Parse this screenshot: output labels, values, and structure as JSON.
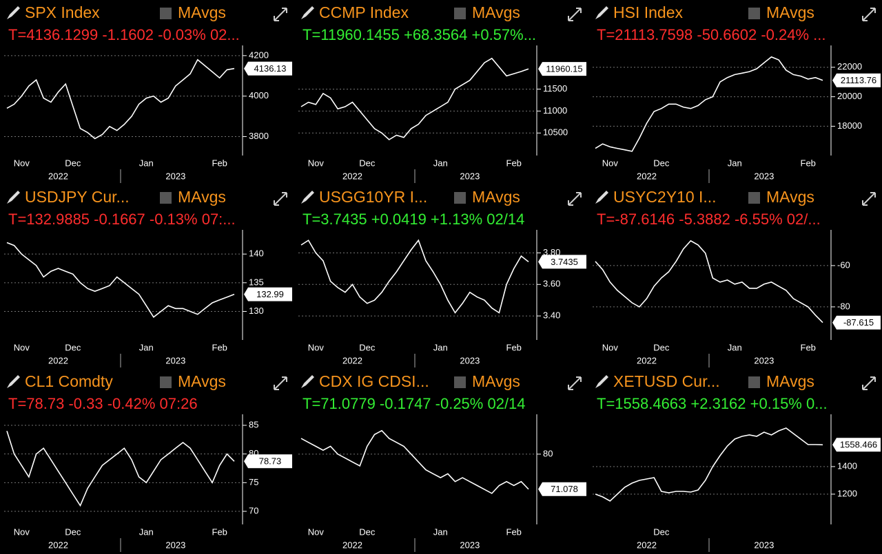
{
  "chart_data": [
    {
      "type": "line",
      "title": "SPX Index",
      "legend": "MAvgs",
      "ticker": "T=4136.1299 -1.1602 -0.03% 02...",
      "ticker_color": "#ff2d2d",
      "color": "#ffffff",
      "grid": true,
      "categories": [
        null,
        null,
        "Nov",
        null,
        null,
        null,
        null,
        null,
        null,
        "Dec",
        null,
        null,
        null,
        null,
        null,
        null,
        null,
        null,
        null,
        "Jan",
        null,
        null,
        null,
        null,
        null,
        null,
        null,
        null,
        null,
        "Feb",
        null,
        null
      ],
      "years": [
        null,
        null,
        null,
        null,
        null,
        null,
        null,
        "2022",
        null,
        null,
        null,
        null,
        null,
        null,
        null,
        null,
        null,
        null,
        null,
        null,
        null,
        null,
        null,
        "2023",
        null,
        null,
        null,
        null,
        null,
        null,
        null,
        null
      ],
      "values": [
        3940,
        3960,
        4000,
        4050,
        4080,
        3990,
        3970,
        4020,
        4060,
        3950,
        3840,
        3820,
        3790,
        3810,
        3850,
        3830,
        3860,
        3900,
        3960,
        3990,
        4000,
        3970,
        3990,
        4050,
        4080,
        4110,
        4180,
        4150,
        4120,
        4090,
        4130,
        4136.1299
      ],
      "last_label": "4136.13",
      "ylim": [
        3720,
        4230
      ],
      "yticks": [
        3800,
        4000,
        4200
      ]
    },
    {
      "type": "line",
      "title": "CCMP Index",
      "legend": "MAvgs",
      "ticker": "T=11960.1455 +68.3564 +0.57%...",
      "ticker_color": "#33ee33",
      "color": "#ffffff",
      "grid": true,
      "categories": [
        null,
        null,
        "Nov",
        null,
        null,
        null,
        null,
        null,
        null,
        "Dec",
        null,
        null,
        null,
        null,
        null,
        null,
        null,
        null,
        null,
        "Jan",
        null,
        null,
        null,
        null,
        null,
        null,
        null,
        null,
        null,
        "Feb",
        null,
        null
      ],
      "years": [
        null,
        null,
        null,
        null,
        null,
        null,
        null,
        "2022",
        null,
        null,
        null,
        null,
        null,
        null,
        null,
        null,
        null,
        null,
        null,
        null,
        null,
        null,
        null,
        "2023",
        null,
        null,
        null,
        null,
        null,
        null,
        null,
        null
      ],
      "values": [
        11100,
        11200,
        11150,
        11400,
        11300,
        11050,
        11100,
        11200,
        11000,
        10800,
        10600,
        10500,
        10350,
        10450,
        10400,
        10600,
        10700,
        10900,
        11000,
        11100,
        11200,
        11500,
        11600,
        11700,
        11900,
        12100,
        12200,
        12000,
        11800,
        11850,
        11900,
        11960.1455
      ],
      "last_label": "11960.15",
      "ylim": [
        10050,
        12400
      ],
      "yticks": [
        10500,
        11000,
        11500
      ]
    },
    {
      "type": "line",
      "title": "HSI Index",
      "legend": "MAvgs",
      "ticker": "T=21113.7598 -50.6602 -0.24% ...",
      "ticker_color": "#ff2d2d",
      "color": "#ffffff",
      "grid": true,
      "categories": [
        null,
        null,
        "Nov",
        null,
        null,
        null,
        null,
        null,
        null,
        "Dec",
        null,
        null,
        null,
        null,
        null,
        null,
        null,
        null,
        null,
        "Jan",
        null,
        null,
        null,
        null,
        null,
        null,
        null,
        null,
        null,
        "Feb",
        null,
        null
      ],
      "years": [
        null,
        null,
        null,
        null,
        null,
        null,
        null,
        "2022",
        null,
        null,
        null,
        null,
        null,
        null,
        null,
        null,
        null,
        null,
        null,
        null,
        null,
        null,
        null,
        "2023",
        null,
        null,
        null,
        null,
        null,
        null,
        null,
        null
      ],
      "values": [
        16500,
        16800,
        16600,
        16500,
        16400,
        16300,
        17200,
        18200,
        19000,
        19200,
        19500,
        19500,
        19300,
        19200,
        19400,
        19800,
        20000,
        21000,
        21300,
        21500,
        21600,
        21700,
        21900,
        22300,
        22700,
        22500,
        21800,
        21500,
        21400,
        21200,
        21300,
        21113.7598
      ],
      "last_label": "21113.76",
      "ylim": [
        16200,
        23200
      ],
      "yticks": [
        18000,
        20000,
        22000
      ]
    },
    {
      "type": "line",
      "title": "USDJPY Cur...",
      "legend": "MAvgs",
      "ticker": "T=132.9885 -0.1667 -0.13% 07:...",
      "ticker_color": "#ff2d2d",
      "color": "#ffffff",
      "grid": true,
      "categories": [
        null,
        null,
        "Nov",
        null,
        null,
        null,
        null,
        null,
        null,
        "Dec",
        null,
        null,
        null,
        null,
        null,
        null,
        null,
        null,
        null,
        "Jan",
        null,
        null,
        null,
        null,
        null,
        null,
        null,
        null,
        null,
        "Feb",
        null,
        null
      ],
      "years": [
        null,
        null,
        null,
        null,
        null,
        null,
        null,
        "2022",
        null,
        null,
        null,
        null,
        null,
        null,
        null,
        null,
        null,
        null,
        null,
        null,
        null,
        null,
        null,
        "2023",
        null,
        null,
        null,
        null,
        null,
        null,
        null,
        null
      ],
      "values": [
        142,
        141.5,
        140,
        139,
        138,
        136,
        137,
        137.5,
        137,
        136.5,
        135,
        134,
        133.5,
        134,
        134.5,
        136,
        135,
        134,
        133,
        131,
        129,
        130,
        131,
        130.5,
        130.5,
        130,
        129.5,
        130.5,
        131.5,
        132,
        132.5,
        132.9885
      ],
      "last_label": "132.99",
      "ylim": [
        125.5,
        143.5
      ],
      "yticks": [
        130,
        135,
        140
      ]
    },
    {
      "type": "line",
      "title": "USGG10YR I...",
      "legend": "MAvgs",
      "ticker": "T=3.7435 +0.0419 +1.13% 02/14",
      "ticker_color": "#33ee33",
      "color": "#ffffff",
      "grid": true,
      "categories": [
        null,
        null,
        "Nov",
        null,
        null,
        null,
        null,
        null,
        null,
        "Dec",
        null,
        null,
        null,
        null,
        null,
        null,
        null,
        null,
        null,
        "Jan",
        null,
        null,
        null,
        null,
        null,
        null,
        null,
        null,
        null,
        "Feb",
        null,
        null
      ],
      "years": [
        null,
        null,
        null,
        null,
        null,
        null,
        null,
        "2022",
        null,
        null,
        null,
        null,
        null,
        null,
        null,
        null,
        null,
        null,
        null,
        null,
        null,
        null,
        null,
        "2023",
        null,
        null,
        null,
        null,
        null,
        null,
        null,
        null
      ],
      "values": [
        3.85,
        3.88,
        3.8,
        3.75,
        3.62,
        3.58,
        3.55,
        3.6,
        3.52,
        3.48,
        3.5,
        3.55,
        3.62,
        3.68,
        3.75,
        3.82,
        3.88,
        3.75,
        3.68,
        3.6,
        3.5,
        3.42,
        3.48,
        3.55,
        3.52,
        3.5,
        3.45,
        3.42,
        3.6,
        3.7,
        3.78,
        3.7435
      ],
      "last_label": "3.7435",
      "ylim": [
        3.265,
        3.92
      ],
      "yticks": [
        {
          "value": 3.4,
          "label": "3.40"
        },
        {
          "value": 3.6,
          "label": "3.60"
        },
        {
          "value": 3.8,
          "label": "3.80"
        }
      ]
    },
    {
      "type": "line",
      "title": "USYC2Y10 I...",
      "legend": "MAvgs",
      "ticker": "T=-87.6146 -5.3882 -6.55% 02/...",
      "ticker_color": "#ff2d2d",
      "color": "#ffffff",
      "grid": true,
      "categories": [
        null,
        null,
        "Nov",
        null,
        null,
        null,
        null,
        null,
        null,
        "Dec",
        null,
        null,
        null,
        null,
        null,
        null,
        null,
        null,
        null,
        "Jan",
        null,
        null,
        null,
        null,
        null,
        null,
        null,
        null,
        null,
        "Feb",
        null,
        null
      ],
      "years": [
        null,
        null,
        null,
        null,
        null,
        null,
        null,
        "2022",
        null,
        null,
        null,
        null,
        null,
        null,
        null,
        null,
        null,
        null,
        null,
        null,
        null,
        null,
        null,
        "2023",
        null,
        null,
        null,
        null,
        null,
        null,
        null,
        null
      ],
      "values": [
        -58,
        -62,
        -68,
        -72,
        -75,
        -78,
        -80,
        -76,
        -70,
        -66,
        -63,
        -58,
        -52,
        -48,
        -50,
        -54,
        -66,
        -68,
        -67,
        -69,
        -68,
        -71,
        -71,
        -69,
        -68,
        -70,
        -72,
        -76,
        -78,
        -80,
        -84,
        -87.6146
      ],
      "last_label": "-87.615",
      "ylim": [
        -94.7,
        -44.7
      ],
      "yticks": [
        -80,
        -60
      ]
    },
    {
      "type": "line",
      "title": "CL1 Comdty",
      "legend": "MAvgs",
      "ticker": "T=78.73 -0.33 -0.42% 07:26",
      "ticker_color": "#ff2d2d",
      "color": "#ffffff",
      "grid": true,
      "categories": [
        null,
        null,
        "Nov",
        null,
        null,
        null,
        null,
        null,
        null,
        "Dec",
        null,
        null,
        null,
        null,
        null,
        null,
        null,
        null,
        null,
        "Jan",
        null,
        null,
        null,
        null,
        null,
        null,
        null,
        null,
        null,
        "Feb",
        null,
        null
      ],
      "years": [
        null,
        null,
        null,
        null,
        null,
        null,
        null,
        "2022",
        null,
        null,
        null,
        null,
        null,
        null,
        null,
        null,
        null,
        null,
        null,
        null,
        null,
        null,
        null,
        "2023",
        null,
        null,
        null,
        null,
        null,
        null,
        null,
        null
      ],
      "values": [
        84,
        80,
        78,
        76,
        80,
        81,
        79,
        77,
        75,
        73,
        71,
        74,
        76,
        78,
        79,
        80,
        81,
        79,
        76,
        75,
        77,
        79,
        80,
        81,
        82,
        81,
        79,
        77,
        75,
        78,
        80,
        78.73
      ],
      "last_label": "78.73",
      "ylim": [
        68.2,
        86.2
      ],
      "yticks": [
        70,
        75,
        80,
        85
      ]
    },
    {
      "type": "line",
      "title": "CDX IG CDSI...",
      "legend": "MAvgs",
      "ticker": "T=71.0779 -0.1747 -0.25% 02/14",
      "ticker_color": "#33ee33",
      "color": "#ffffff",
      "grid": true,
      "categories": [
        null,
        null,
        "Nov",
        null,
        null,
        null,
        null,
        null,
        null,
        "Dec",
        null,
        null,
        null,
        null,
        null,
        null,
        null,
        null,
        null,
        "Jan",
        null,
        null,
        null,
        null,
        null,
        null,
        null,
        null,
        null,
        "Feb",
        null,
        null
      ],
      "years": [
        null,
        null,
        null,
        null,
        null,
        null,
        null,
        "2022",
        null,
        null,
        null,
        null,
        null,
        null,
        null,
        null,
        null,
        null,
        null,
        null,
        null,
        null,
        null,
        "2023",
        null,
        null,
        null,
        null,
        null,
        null,
        null,
        null
      ],
      "values": [
        84,
        83,
        82,
        81,
        82,
        80,
        79,
        78,
        77,
        82,
        85,
        86,
        84,
        83,
        82,
        80,
        78,
        76,
        75,
        74,
        75,
        73,
        74,
        73,
        72,
        71,
        70,
        72,
        73,
        72,
        73,
        71.0779
      ],
      "last_label": "71.078",
      "ylim": [
        62.8,
        89.1
      ],
      "yticks": [
        80
      ]
    },
    {
      "type": "line",
      "title": "XETUSD Cur...",
      "legend": "MAvgs",
      "ticker": "T=1558.4663 +2.3162 +0.15% 0...",
      "ticker_color": "#33ee33",
      "color": "#ffffff",
      "grid": true,
      "categories": [
        null,
        null,
        null,
        null,
        null,
        null,
        null,
        null,
        null,
        "Dec",
        null,
        null,
        null,
        null,
        null,
        null,
        null,
        null,
        null,
        null,
        null,
        null,
        null,
        null,
        null,
        null,
        null,
        null,
        null,
        null,
        null,
        null
      ],
      "years": [
        null,
        null,
        null,
        null,
        null,
        null,
        null,
        "2022",
        null,
        null,
        null,
        null,
        null,
        null,
        null,
        null,
        null,
        null,
        null,
        null,
        null,
        null,
        null,
        "2023",
        null,
        null,
        null,
        null,
        null,
        null,
        null,
        null
      ],
      "values": [
        1200,
        1180,
        1150,
        1200,
        1250,
        1280,
        1300,
        1310,
        1320,
        1220,
        1210,
        1220,
        1220,
        1215,
        1230,
        1300,
        1400,
        1480,
        1550,
        1600,
        1620,
        1630,
        1620,
        1650,
        1630,
        1660,
        1680,
        1640,
        1600,
        1560,
        1560,
        1558.4663
      ],
      "last_label": "1558.466",
      "ylim": [
        1000,
        1750
      ],
      "yticks": [
        1200,
        1400
      ]
    }
  ]
}
